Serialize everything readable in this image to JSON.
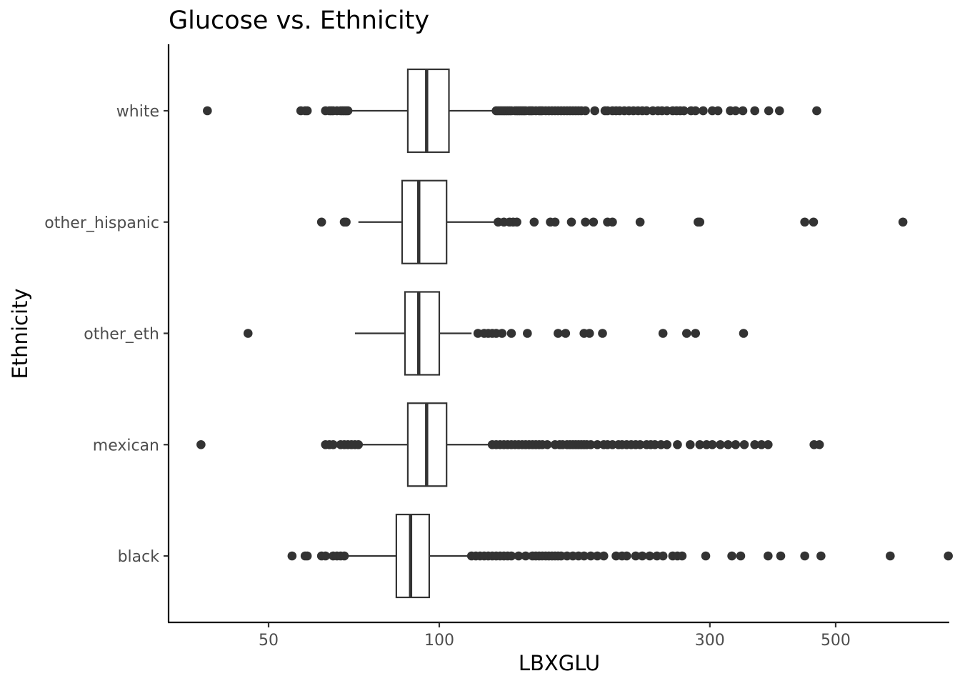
{
  "chart_data": {
    "type": "boxplot",
    "title": "Glucose vs. Ethnicity",
    "xlabel": "LBXGLU",
    "ylabel": "Ethnicity",
    "x_scale": "log10",
    "xlim": [
      35,
      900
    ],
    "x_ticks": [
      50,
      100,
      300,
      500
    ],
    "x_tick_labels": [
      "50",
      "100",
      "300",
      "500"
    ],
    "grid": false,
    "categories": [
      "white",
      "other_hispanic",
      "other_eth",
      "mexican",
      "black"
    ],
    "series": [
      {
        "category": "white",
        "whisker_low": 69,
        "q1": 88,
        "median": 95,
        "q3": 104,
        "whisker_high": 126,
        "outliers": [
          39,
          57,
          58,
          58.5,
          63,
          64,
          64.5,
          65,
          66,
          67,
          67.5,
          68,
          68.5,
          69,
          126,
          127,
          128,
          129,
          130,
          131,
          132,
          133,
          134,
          136,
          137,
          138,
          139,
          140,
          141,
          142,
          144,
          145,
          146,
          148,
          150,
          151,
          152,
          154,
          156,
          158,
          160,
          162,
          164,
          166,
          168,
          170,
          172,
          174,
          176,
          178,
          181,
          188,
          196,
          198,
          202,
          205,
          208,
          212,
          216,
          220,
          224,
          228,
          232,
          238,
          243,
          247,
          252,
          258,
          262,
          266,
          270,
          278,
          283,
          292,
          303,
          310,
          326,
          333,
          343,
          360,
          381,
          398,
          463
        ]
      },
      {
        "category": "other_hispanic",
        "whisker_low": 72,
        "q1": 86,
        "median": 92,
        "q3": 103,
        "whisker_high": 126,
        "outliers": [
          62,
          68,
          68.5,
          127,
          130,
          133,
          135,
          137,
          147,
          157,
          160,
          171,
          181,
          187,
          198,
          202,
          226,
          286,
          288,
          441,
          457,
          657
        ]
      },
      {
        "category": "other_eth",
        "whisker_low": 71,
        "q1": 87,
        "median": 92,
        "q3": 100,
        "whisker_high": 114,
        "outliers": [
          46,
          117,
          120,
          122,
          124,
          126,
          129,
          134,
          143,
          162,
          167,
          180,
          184,
          194,
          248,
          273,
          283,
          344
        ]
      },
      {
        "category": "mexican",
        "whisker_low": 72,
        "q1": 88,
        "median": 95,
        "q3": 103,
        "whisker_high": 124,
        "outliers": [
          38,
          63,
          64,
          65,
          67,
          68,
          69,
          70,
          71,
          72,
          124,
          126,
          128,
          130,
          132,
          134,
          136,
          138,
          140,
          142,
          144,
          146,
          148,
          150,
          152,
          155,
          160,
          163,
          165,
          168,
          170,
          172,
          174,
          176,
          178,
          180,
          182,
          185,
          190,
          195,
          198,
          202,
          207,
          210,
          214,
          218,
          222,
          226,
          232,
          236,
          240,
          246,
          252,
          263,
          277,
          288,
          296,
          303,
          313,
          323,
          333,
          345,
          360,
          370,
          380,
          458,
          468
        ]
      },
      {
        "category": "black",
        "whisker_low": 66,
        "q1": 84,
        "median": 89,
        "q3": 96,
        "whisker_high": 114,
        "outliers": [
          55,
          58,
          58.5,
          62,
          63,
          65,
          66,
          67,
          68,
          114,
          116,
          118,
          120,
          122,
          124,
          126,
          128,
          130,
          132,
          134,
          138,
          142,
          146,
          148,
          150,
          152,
          154,
          156,
          158,
          160,
          162,
          164,
          168,
          172,
          176,
          180,
          185,
          190,
          195,
          205,
          210,
          214,
          222,
          228,
          235,
          242,
          248,
          258,
          263,
          268,
          295,
          328,
          340,
          380,
          400,
          441,
          471,
          624,
          790
        ]
      }
    ]
  }
}
